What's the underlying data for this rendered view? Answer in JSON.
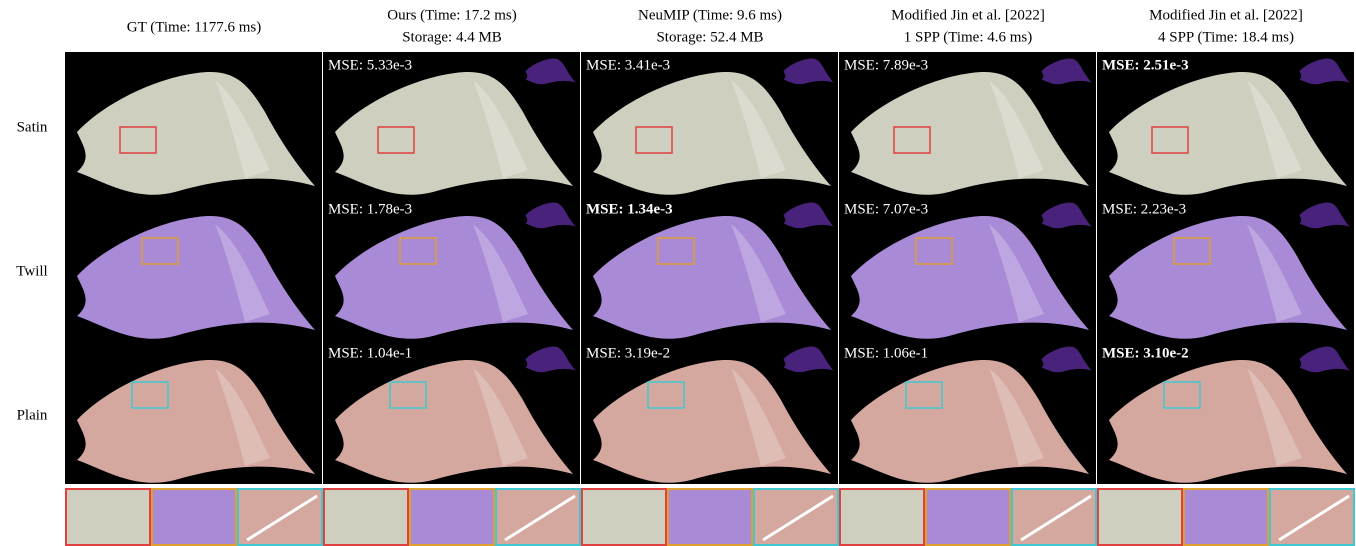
{
  "columns": [
    {
      "header": [
        "GT (Time: 1177.6 ms)"
      ]
    },
    {
      "header": [
        "Ours (Time: 17.2 ms)",
        "Storage: 4.4 MB"
      ]
    },
    {
      "header": [
        "NeuMIP (Time: 9.6 ms)",
        "Storage: 52.4 MB"
      ]
    },
    {
      "header": [
        "Modified Jin et al. [2022]",
        "1 SPP (Time: 4.6 ms)"
      ]
    },
    {
      "header": [
        "Modified Jin et al. [2022]",
        "4 SPP (Time: 18.4 ms)"
      ]
    }
  ],
  "rows": [
    {
      "label": "Satin",
      "mse": [
        "MSE: 5.33e-3",
        "MSE: 3.41e-3",
        "MSE: 7.89e-3",
        "MSE: 2.51e-3"
      ],
      "best": 3
    },
    {
      "label": "Twill",
      "mse": [
        "MSE: 1.78e-3",
        "MSE: 1.34e-3",
        "MSE: 7.07e-3",
        "MSE: 2.23e-3"
      ],
      "best": 1
    },
    {
      "label": "Plain",
      "mse": [
        "MSE: 1.04e-1",
        "MSE: 3.19e-2",
        "MSE: 1.06e-1",
        "MSE: 3.10e-2"
      ],
      "best": 3
    }
  ]
}
